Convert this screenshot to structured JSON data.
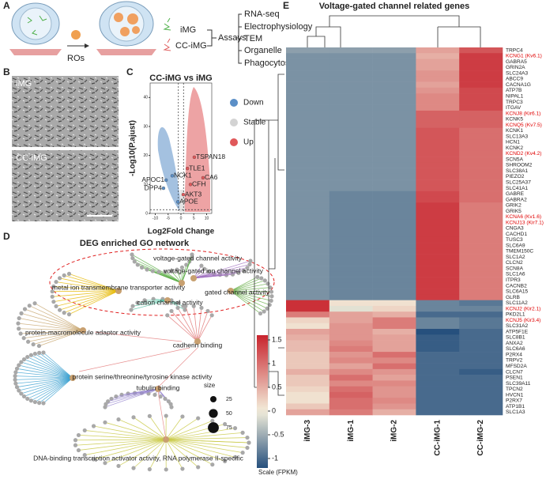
{
  "panel_labels": [
    "A",
    "B",
    "C",
    "D",
    "E"
  ],
  "panel_a": {
    "cell_types": [
      "iMG",
      "CC-iMG"
    ],
    "treatment": "ROs",
    "assays_label": "Assays",
    "assays": [
      "RNA-seq",
      "Electrophysiology",
      "TEM",
      "Organelle",
      "Phagocytosis"
    ]
  },
  "panel_b": {
    "labels": [
      "iMG",
      "CC-iMG"
    ]
  },
  "panel_d": {
    "title": "DEG enriched GO network",
    "terms": [
      "voltage-gated channel activity",
      "voltage-gated ion channel activity",
      "metal ion transmembrane transporter activity",
      "gated channel activity",
      "cation channel activity",
      "protein-macromolecule adaptor activity",
      "cadherin binding",
      "protein serine/threonine/tyrosine kinase activity",
      "tubulin binding",
      "DNA-binding transcription activator activity, RNA polymerase II-specific"
    ],
    "size_legend": {
      "title": "size",
      "values": [
        25,
        50,
        75
      ]
    }
  },
  "chart_data": [
    {
      "type": "scatter",
      "title": "CC-iMG vs iMG",
      "x_label": "Log2Fold Change",
      "y_label": "-Log10(P.ajust)",
      "xlim": [
        -12,
        12
      ],
      "ylim": [
        0,
        45
      ],
      "xticks": [
        -10,
        -5,
        0,
        5,
        10
      ],
      "yticks": [
        0,
        10,
        20,
        30,
        40
      ],
      "thresholds": {
        "x": [
          -1,
          1
        ],
        "y": 1.3
      },
      "series": [
        {
          "name": "Down",
          "color": "#5b8fc7",
          "labels": [
            "APOC1",
            "DPP4",
            "NCK1",
            "APOE"
          ],
          "x": [
            -5.8,
            -6.8,
            -3.4,
            -1.2
          ],
          "y": [
            11.5,
            8.7,
            13,
            4
          ]
        },
        {
          "name": "Stable",
          "color": "#d3d3d3"
        },
        {
          "name": "Up",
          "color": "#e0585a",
          "labels": [
            "TSPAN18",
            "TLE1",
            "CA6",
            "CFH",
            "AKT3"
          ],
          "x": [
            5.2,
            2.5,
            8.6,
            3.7,
            0.9
          ],
          "y": [
            19.4,
            15.5,
            12.3,
            10,
            6.5
          ]
        }
      ]
    },
    {
      "type": "heatmap",
      "title": "Voltage-gated channel related genes",
      "columns": [
        "iMG-3",
        "iMG-1",
        "iMG-2",
        "CC-iMG-1",
        "CC-iMG-2"
      ],
      "rows": [
        "TRPC4",
        "KCNG1 (Kv6.1)",
        "GABRA5",
        "GRIN2A",
        "SLC24A3",
        "ABCC9",
        "CACNA1G",
        "ATP7B",
        "NIPAL1",
        "TRPC3",
        "ITGAV",
        "KCNJ8 (Kir6.1)",
        "KCNK5",
        "KCNQ5 (Kv7.5)",
        "KCNK1",
        "SLC13A3",
        "HCN1",
        "KCNK2",
        "KCND2 (Kv4.2)",
        "SCN5A",
        "SHROOM2",
        "SLC38A1",
        "PIEZO2",
        "SLC25A37",
        "SLC41A1",
        "GABRE",
        "GABRA2",
        "GRIK2",
        "GRIK5",
        "KCNA6 (Kv1.6)",
        "KCNJ13 (Kir7.1)",
        "CNGA3",
        "CACHD1",
        "TUSC3",
        "SLC6A9",
        "TMEM150C",
        "SLC1A2",
        "CLCN2",
        "SCN8A",
        "SLC1A6",
        "ITPR3",
        "CACNB2",
        "SLC6A15",
        "GLRB",
        "SLC11A2",
        "KCNJ2 (Kir2.1)",
        "PKD2L1",
        "KCNJ5 (Kir3.4)",
        "SLC31A2",
        "ATP5F1E",
        "SLC8B1",
        "ANXA2",
        "SLC6A6",
        "P2RX4",
        "TRPV2",
        "MFSD2A",
        "CLCN7",
        "PSEN1",
        "SLC39A11",
        "TPCN2",
        "HVCN1",
        "P2RX7",
        "ATP1B1",
        "SLC1A3"
      ],
      "highlighted_rows": [
        1,
        11,
        13,
        18,
        29,
        30,
        45,
        47
      ],
      "highlight_color": "#e00000",
      "values": [
        [
          -0.6,
          -0.6,
          -0.6,
          0.6,
          1.2
        ],
        [
          -0.7,
          -0.7,
          -0.7,
          0.5,
          1.4
        ],
        [
          -0.7,
          -0.7,
          -0.7,
          0.6,
          1.4
        ],
        [
          -0.7,
          -0.7,
          -0.7,
          0.6,
          1.4
        ],
        [
          -0.7,
          -0.7,
          -0.7,
          0.7,
          1.4
        ],
        [
          -0.7,
          -0.7,
          -0.7,
          0.7,
          1.4
        ],
        [
          -0.7,
          -0.7,
          -0.7,
          0.6,
          1.4
        ],
        [
          -0.7,
          -0.7,
          -0.7,
          0.7,
          1.3
        ],
        [
          -0.7,
          -0.7,
          -0.7,
          0.8,
          1.3
        ],
        [
          -0.7,
          -0.7,
          -0.7,
          0.8,
          1.3
        ],
        [
          -0.7,
          -0.7,
          -0.7,
          0.8,
          1.3
        ],
        [
          -0.7,
          -0.7,
          -0.7,
          1.1,
          1.1
        ],
        [
          -0.7,
          -0.7,
          -0.7,
          1.1,
          1.1
        ],
        [
          -0.7,
          -0.7,
          -0.7,
          1.1,
          1.1
        ],
        [
          -0.7,
          -0.7,
          -0.7,
          1.2,
          1.0
        ],
        [
          -0.7,
          -0.7,
          -0.7,
          1.2,
          1.0
        ],
        [
          -0.7,
          -0.7,
          -0.7,
          1.2,
          1.0
        ],
        [
          -0.7,
          -0.7,
          -0.7,
          1.2,
          1.0
        ],
        [
          -0.7,
          -0.7,
          -0.7,
          1.2,
          1.0
        ],
        [
          -0.7,
          -0.7,
          -0.7,
          1.2,
          1.0
        ],
        [
          -0.7,
          -0.7,
          -0.7,
          1.2,
          1.0
        ],
        [
          -0.7,
          -0.7,
          -0.7,
          1.2,
          1.0
        ],
        [
          -0.7,
          -0.7,
          -0.7,
          1.2,
          1.0
        ],
        [
          -0.7,
          -0.7,
          -0.7,
          1.2,
          1.0
        ],
        [
          -0.7,
          -0.7,
          -0.7,
          1.2,
          1.0
        ],
        [
          -0.7,
          -0.8,
          -0.8,
          1.3,
          1.0
        ],
        [
          -0.7,
          -0.8,
          -0.8,
          1.3,
          1.0
        ],
        [
          -0.7,
          -0.8,
          -0.8,
          1.4,
          0.9
        ],
        [
          -0.7,
          -0.8,
          -0.8,
          1.4,
          0.9
        ],
        [
          -0.7,
          -0.8,
          -0.8,
          1.4,
          0.9
        ],
        [
          -0.7,
          -0.8,
          -0.8,
          1.4,
          0.9
        ],
        [
          -0.7,
          -0.8,
          -0.8,
          1.4,
          0.9
        ],
        [
          -0.7,
          -0.8,
          -0.8,
          1.4,
          0.9
        ],
        [
          -0.7,
          -0.8,
          -0.8,
          1.4,
          0.9
        ],
        [
          -0.7,
          -0.8,
          -0.8,
          1.4,
          0.9
        ],
        [
          -0.7,
          -0.8,
          -0.8,
          1.4,
          0.9
        ],
        [
          -0.7,
          -0.8,
          -0.8,
          1.4,
          0.9
        ],
        [
          -0.7,
          -0.8,
          -0.8,
          1.4,
          0.9
        ],
        [
          -0.7,
          -0.8,
          -0.8,
          1.4,
          0.9
        ],
        [
          -0.7,
          -0.8,
          -0.8,
          1.4,
          0.9
        ],
        [
          -0.7,
          -0.8,
          -0.8,
          1.4,
          0.9
        ],
        [
          -0.7,
          -0.8,
          -0.8,
          1.4,
          0.9
        ],
        [
          -0.7,
          -0.8,
          -0.8,
          1.4,
          0.9
        ],
        [
          -0.7,
          -0.8,
          -0.8,
          1.4,
          0.9
        ],
        [
          1.5,
          0.1,
          0.1,
          -0.8,
          -0.9
        ],
        [
          1.5,
          -0.1,
          0.2,
          -0.8,
          -0.8
        ],
        [
          0.9,
          0.6,
          0.5,
          -1.0,
          -1.0
        ],
        [
          0.2,
          0.6,
          0.9,
          -0.8,
          -0.9
        ],
        [
          0.1,
          0.7,
          0.9,
          -0.8,
          -0.9
        ],
        [
          0.6,
          0.7,
          0.5,
          -1.2,
          -1.0
        ],
        [
          0.5,
          0.7,
          0.6,
          -1.1,
          -1.0
        ],
        [
          0.4,
          0.8,
          0.6,
          -1.1,
          -1.0
        ],
        [
          0.4,
          0.9,
          0.6,
          -1.1,
          -1.0
        ],
        [
          0.3,
          0.7,
          1.0,
          -1.0,
          -1.0
        ],
        [
          0.3,
          0.8,
          0.8,
          -1.0,
          -1.0
        ],
        [
          0.3,
          0.6,
          1.0,
          -1.0,
          -1.0
        ],
        [
          0.5,
          0.8,
          0.7,
          -1.0,
          -1.1
        ],
        [
          0.3,
          1.0,
          0.6,
          -1.0,
          -1.0
        ],
        [
          0.3,
          0.8,
          0.8,
          -1.0,
          -1.0
        ],
        [
          0.2,
          1.0,
          0.7,
          -1.0,
          -1.0
        ],
        [
          0.1,
          1.1,
          0.7,
          -1.0,
          -1.0
        ],
        [
          0.1,
          1.0,
          0.8,
          -1.0,
          -1.0
        ],
        [
          0.3,
          1.0,
          0.7,
          -1.0,
          -1.0
        ],
        [
          0.6,
          0.9,
          0.5,
          -1.0,
          -1.0
        ]
      ],
      "colormap": [
        "#26507d",
        "#f3eedb",
        "#c8232d"
      ],
      "colorbar": {
        "label": "Scale (FPKM)",
        "lim": [
          -1.2,
          1.6
        ],
        "ticks": [
          -1,
          -0.5,
          0,
          0.5,
          1,
          1.5
        ]
      }
    }
  ]
}
